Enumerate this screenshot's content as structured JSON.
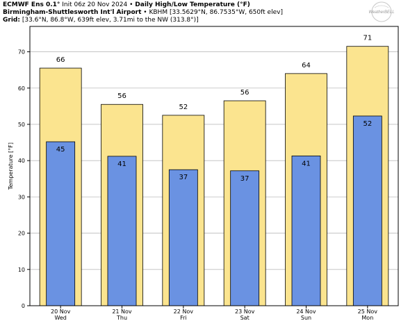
{
  "header": {
    "line1_bold_model": "ECMWF Ens 0.1°",
    "line1_init": "Init 06z 20 Nov 2024",
    "line1_sep": "•",
    "line1_bold_title": "Daily High/Low Temperature (°F)",
    "line2_bold_station": "Birmingham-Shuttlesworth Int'l Airport",
    "line2_sep": "•",
    "line2_detail": "KBHM [33.5629°N, 86.7535°W, 650ft elev]",
    "line3_bold_label": "Grid:",
    "line3_detail": "[33.6°N, 86.8°W, 639ft elev, 3.71mi to the NW (313.8°)]"
  },
  "logo": {
    "text": "WeatherBELL"
  },
  "chart_data": {
    "type": "bar",
    "title": "",
    "ylabel": "Temperature [°F]",
    "xlabel": "",
    "ylim": [
      0,
      77
    ],
    "yticks": [
      0,
      10,
      20,
      30,
      40,
      50,
      60,
      70
    ],
    "grid": true,
    "categories": [
      {
        "date": "20 Nov",
        "day": "Wed"
      },
      {
        "date": "21 Nov",
        "day": "Thu"
      },
      {
        "date": "22 Nov",
        "day": "Fri"
      },
      {
        "date": "23 Nov",
        "day": "Sat"
      },
      {
        "date": "24 Nov",
        "day": "Sun"
      },
      {
        "date": "25 Nov",
        "day": "Mon"
      }
    ],
    "series": [
      {
        "values": [
          65.5,
          55.5,
          52.5,
          56.5,
          64,
          71.5
        ],
        "labels": [
          "66",
          "56",
          "52",
          "56",
          "64",
          "71"
        ],
        "color": "#fbe48f"
      },
      {
        "values": [
          45.2,
          41.2,
          37.5,
          37.2,
          41.3,
          52.3
        ],
        "labels": [
          "45",
          "41",
          "37",
          "37",
          "41",
          "52"
        ],
        "color": "#6a92e2"
      }
    ]
  }
}
